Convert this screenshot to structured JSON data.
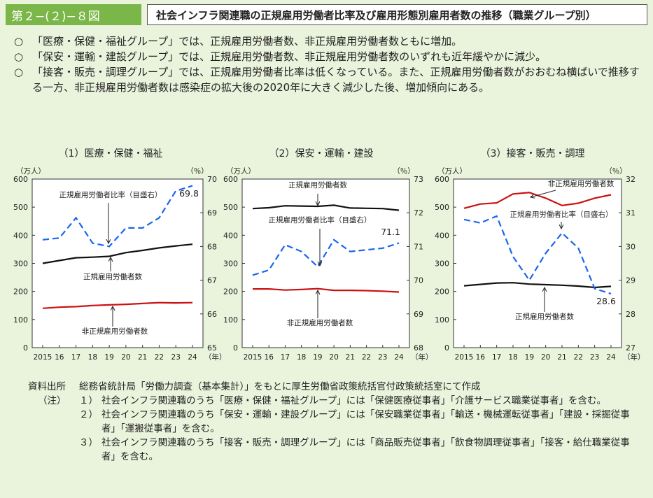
{
  "header": {
    "figure_no": "第２−(２)−８図",
    "title": "社会インフラ関連職の正規雇用労働者比率及び雇用形態別雇用者数の推移（職業グループ別）"
  },
  "bullets": [
    {
      "mark": "○",
      "text": "「医療・保健・福祉グループ」では、正規雇用労働者数、非正規雇用労働者数ともに増加。"
    },
    {
      "mark": "○",
      "text": "「保安・運輸・建設グループ」では、正規雇用労働者数、非正規雇用労働者数のいずれも近年緩やかに減少。"
    },
    {
      "mark": "○",
      "text": "「接客・販売・調理グループ」では、正規雇用労働者比率は低くなっている。また、正規雇用労働者数がおおむね横ばいで推移する一方、非正規雇用労働者数は感染症の拡大後の2020年に大きく減少した後、増加傾向にある。"
    }
  ],
  "chart_data": [
    {
      "type": "line",
      "title": "（1）医療・保健・福祉",
      "left_unit": "（万人）",
      "right_unit": "（％）",
      "x_unit": "（年）",
      "x": [
        "2015",
        "16",
        "17",
        "18",
        "19",
        "20",
        "21",
        "22",
        "23",
        "24"
      ],
      "ylim": [
        0,
        600
      ],
      "yticks": [
        "0",
        "100",
        "200",
        "300",
        "400",
        "500",
        "600"
      ],
      "y2lim": [
        65,
        70
      ],
      "y2ticks": [
        "65",
        "66",
        "67",
        "68",
        "69",
        "70"
      ],
      "series": [
        {
          "name": "正規雇用労働者数",
          "axis": "left",
          "color": "#111111",
          "style": "solid",
          "values": [
            300,
            310,
            320,
            322,
            325,
            338,
            346,
            355,
            362,
            368
          ]
        },
        {
          "name": "非正規雇用労働者数",
          "axis": "left",
          "color": "#cc1111",
          "style": "solid",
          "values": [
            140,
            144,
            146,
            150,
            152,
            154,
            157,
            160,
            159,
            160
          ]
        },
        {
          "name": "正規雇用労働者比率（目盛右）",
          "axis": "right",
          "color": "#1a66ee",
          "style": "dashed",
          "values": [
            68.2,
            68.25,
            68.85,
            68.1,
            68.0,
            68.55,
            68.55,
            68.85,
            69.65,
            69.8
          ]
        }
      ],
      "end_label": "69.8"
    },
    {
      "type": "line",
      "title": "（2）保安・運輸・建設",
      "left_unit": "（万人）",
      "right_unit": "（％）",
      "x_unit": "（年）",
      "x": [
        "2015",
        "16",
        "17",
        "18",
        "19",
        "20",
        "21",
        "22",
        "23",
        "24"
      ],
      "ylim": [
        0,
        600
      ],
      "yticks": [
        "0",
        "100",
        "200",
        "300",
        "400",
        "500",
        "600"
      ],
      "y2lim": [
        68,
        73
      ],
      "y2ticks": [
        "68",
        "69",
        "70",
        "71",
        "72",
        "73"
      ],
      "series": [
        {
          "name": "正規雇用労働者数",
          "axis": "left",
          "color": "#111111",
          "style": "solid",
          "values": [
            495,
            498,
            505,
            504,
            503,
            507,
            497,
            496,
            495,
            489
          ]
        },
        {
          "name": "非正規雇用労働者数",
          "axis": "left",
          "color": "#cc1111",
          "style": "solid",
          "values": [
            209,
            209,
            205,
            207,
            210,
            204,
            204,
            203,
            201,
            198
          ]
        },
        {
          "name": "正規雇用労働者比率（目盛右）",
          "axis": "right",
          "color": "#1a66ee",
          "style": "dashed",
          "values": [
            70.15,
            70.3,
            71.05,
            70.85,
            70.4,
            71.2,
            70.85,
            70.9,
            70.95,
            71.1
          ]
        }
      ],
      "end_label": "71.1"
    },
    {
      "type": "line",
      "title": "（3）接客・販売・調理",
      "left_unit": "（万人）",
      "right_unit": "（％）",
      "x_unit": "（年）",
      "x": [
        "2015",
        "16",
        "17",
        "18",
        "19",
        "20",
        "21",
        "22",
        "23",
        "24"
      ],
      "ylim": [
        0,
        600
      ],
      "yticks": [
        "0",
        "100",
        "200",
        "300",
        "400",
        "500",
        "600"
      ],
      "y2lim": [
        27,
        32
      ],
      "y2ticks": [
        "27",
        "28",
        "29",
        "30",
        "31",
        "32"
      ],
      "series": [
        {
          "name": "非正規雇用労働者数",
          "axis": "left",
          "color": "#cc1111",
          "style": "solid",
          "values": [
            496,
            511,
            515,
            547,
            552,
            532,
            506,
            514,
            532,
            544
          ]
        },
        {
          "name": "正規雇用労働者数",
          "axis": "left",
          "color": "#111111",
          "style": "solid",
          "values": [
            220,
            225,
            230,
            231,
            226,
            224,
            222,
            219,
            214,
            218
          ]
        },
        {
          "name": "正規雇用労働者比率（目盛右）",
          "axis": "right",
          "color": "#1a66ee",
          "style": "dashed",
          "values": [
            30.8,
            30.7,
            30.9,
            29.7,
            29.0,
            29.8,
            30.4,
            29.95,
            28.75,
            28.6
          ]
        }
      ],
      "end_label": "28.6"
    }
  ],
  "panel_labels": [
    [
      {
        "text": "正規雇用労働者比率（目盛右）"
      },
      {
        "text": "正規雇用労働者数"
      },
      {
        "text": "非正規雇用労働者数"
      }
    ],
    [
      {
        "text": "正規雇用労働者数"
      },
      {
        "text": "正規雇用労働者比率（目盛右）"
      },
      {
        "text": "非正規雇用労働者数"
      }
    ],
    [
      {
        "text": "非正規雇用労働者数"
      },
      {
        "text": "正規雇用労働者比率（目盛右）"
      },
      {
        "text": "正規雇用労働者数"
      }
    ]
  ],
  "footer": {
    "source_label": "資料出所",
    "source_text": "総務省統計局「労働力調査（基本集計）」をもとに厚生労働省政策統括官付政策統括室にて作成",
    "notes_label": "（注）",
    "notes": [
      {
        "num": "１）",
        "text": "社会インフラ関連職のうち「医療・保健・福祉グループ」には「保健医療従事者」「介護サービス職業従事者」を含む。"
      },
      {
        "num": "２）",
        "text": "社会インフラ関連職のうち「保安・運輸・建設グループ」には「保安職業従事者」「輸送・機械運転従事者」「建設・採掘従事者」「運搬従事者」を含む。"
      },
      {
        "num": "３）",
        "text": "社会インフラ関連職のうち「接客・販売・調理グループ」には「商品販売従事者」「飲食物調理従事者」「接客・給仕職業従事者」を含む。"
      }
    ]
  }
}
